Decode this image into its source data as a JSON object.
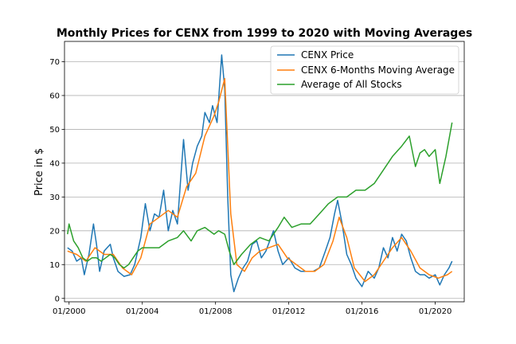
{
  "chart_data": {
    "type": "line",
    "title": "Monthly Prices for CENX from 1999 to 2020 with Moving Averages",
    "xlabel": "",
    "ylabel": "Price in $",
    "xlim": [
      "1999-10",
      "2021-08"
    ],
    "ylim": [
      -1,
      76
    ],
    "x_ticks": [
      "01/2000",
      "01/2004",
      "01/2008",
      "01/2012",
      "01/2016",
      "01/2020"
    ],
    "y_ticks": [
      0,
      10,
      20,
      30,
      40,
      50,
      60,
      70
    ],
    "grid": "horizontal",
    "legend_position": "top-right",
    "colors": {
      "price": "#1f77b4",
      "ma6": "#ff7f0e",
      "all": "#2ca02c"
    },
    "series": [
      {
        "name": "CENX Price",
        "points": [
          [
            "1999-12",
            15
          ],
          [
            "2000-03",
            14
          ],
          [
            "2000-06",
            11
          ],
          [
            "2000-09",
            12
          ],
          [
            "2000-11",
            7
          ],
          [
            "2001-02",
            13
          ],
          [
            "2001-05",
            22
          ],
          [
            "2001-07",
            16
          ],
          [
            "2001-09",
            8
          ],
          [
            "2001-12",
            14
          ],
          [
            "2002-04",
            16
          ],
          [
            "2002-06",
            12
          ],
          [
            "2002-09",
            8
          ],
          [
            "2003-01",
            6.5
          ],
          [
            "2003-05",
            7
          ],
          [
            "2003-08",
            10
          ],
          [
            "2003-12",
            18
          ],
          [
            "2004-03",
            28
          ],
          [
            "2004-06",
            20
          ],
          [
            "2004-09",
            25
          ],
          [
            "2004-12",
            24
          ],
          [
            "2005-03",
            32
          ],
          [
            "2005-06",
            20
          ],
          [
            "2005-09",
            26
          ],
          [
            "2005-12",
            22
          ],
          [
            "2006-04",
            47
          ],
          [
            "2006-07",
            32
          ],
          [
            "2006-10",
            40
          ],
          [
            "2007-01",
            45
          ],
          [
            "2007-04",
            48
          ],
          [
            "2007-06",
            55
          ],
          [
            "2007-09",
            52
          ],
          [
            "2007-11",
            57
          ],
          [
            "2008-02",
            52
          ],
          [
            "2008-05",
            72
          ],
          [
            "2008-07",
            62
          ],
          [
            "2008-09",
            30
          ],
          [
            "2008-11",
            7
          ],
          [
            "2009-01",
            2
          ],
          [
            "2009-04",
            6
          ],
          [
            "2009-07",
            9
          ],
          [
            "2009-10",
            11
          ],
          [
            "2010-01",
            16
          ],
          [
            "2010-04",
            17
          ],
          [
            "2010-07",
            12
          ],
          [
            "2010-10",
            14
          ],
          [
            "2011-03",
            20
          ],
          [
            "2011-06",
            14
          ],
          [
            "2011-09",
            10
          ],
          [
            "2012-01",
            12
          ],
          [
            "2012-05",
            9
          ],
          [
            "2012-09",
            8
          ],
          [
            "2013-01",
            8
          ],
          [
            "2013-05",
            8
          ],
          [
            "2013-09",
            9
          ],
          [
            "2014-01",
            14
          ],
          [
            "2014-04",
            18
          ],
          [
            "2014-07",
            25
          ],
          [
            "2014-09",
            29
          ],
          [
            "2014-12",
            22
          ],
          [
            "2015-03",
            13
          ],
          [
            "2015-06",
            10
          ],
          [
            "2015-09",
            6
          ],
          [
            "2016-01",
            3.5
          ],
          [
            "2016-05",
            8
          ],
          [
            "2016-09",
            6
          ],
          [
            "2016-12",
            9
          ],
          [
            "2017-03",
            15
          ],
          [
            "2017-06",
            12
          ],
          [
            "2017-09",
            18
          ],
          [
            "2017-12",
            14
          ],
          [
            "2018-03",
            19
          ],
          [
            "2018-06",
            17
          ],
          [
            "2018-09",
            12
          ],
          [
            "2018-12",
            8
          ],
          [
            "2019-03",
            7
          ],
          [
            "2019-06",
            7
          ],
          [
            "2019-09",
            6
          ],
          [
            "2020-01",
            7
          ],
          [
            "2020-04",
            4
          ],
          [
            "2020-07",
            7
          ],
          [
            "2020-10",
            9
          ],
          [
            "2020-12",
            11
          ]
        ]
      },
      {
        "name": "CENX 6-Months Moving Average",
        "points": [
          [
            "1999-12",
            14
          ],
          [
            "2000-06",
            13
          ],
          [
            "2000-12",
            11
          ],
          [
            "2001-06",
            15
          ],
          [
            "2001-12",
            13
          ],
          [
            "2002-06",
            13
          ],
          [
            "2002-12",
            9
          ],
          [
            "2003-06",
            7
          ],
          [
            "2003-12",
            12
          ],
          [
            "2004-06",
            22
          ],
          [
            "2004-12",
            24
          ],
          [
            "2005-06",
            26
          ],
          [
            "2005-12",
            24
          ],
          [
            "2006-06",
            33
          ],
          [
            "2006-12",
            37
          ],
          [
            "2007-06",
            48
          ],
          [
            "2007-12",
            54
          ],
          [
            "2008-03",
            58
          ],
          [
            "2008-07",
            65
          ],
          [
            "2008-09",
            45
          ],
          [
            "2008-11",
            25
          ],
          [
            "2009-03",
            10
          ],
          [
            "2009-08",
            8
          ],
          [
            "2010-01",
            12
          ],
          [
            "2010-06",
            14
          ],
          [
            "2010-12",
            15
          ],
          [
            "2011-06",
            16
          ],
          [
            "2011-12",
            12
          ],
          [
            "2012-06",
            10
          ],
          [
            "2012-12",
            8
          ],
          [
            "2013-06",
            8
          ],
          [
            "2013-12",
            10
          ],
          [
            "2014-06",
            17
          ],
          [
            "2014-10",
            24
          ],
          [
            "2015-03",
            18
          ],
          [
            "2015-08",
            9
          ],
          [
            "2016-03",
            5
          ],
          [
            "2016-09",
            7
          ],
          [
            "2017-03",
            11
          ],
          [
            "2017-09",
            15
          ],
          [
            "2018-03",
            18
          ],
          [
            "2018-09",
            14
          ],
          [
            "2019-03",
            9
          ],
          [
            "2019-09",
            7
          ],
          [
            "2020-03",
            6
          ],
          [
            "2020-09",
            7
          ],
          [
            "2020-12",
            8
          ]
        ]
      },
      {
        "name": "Average of All Stocks",
        "points": [
          [
            "1999-12",
            19
          ],
          [
            "2000-01",
            22
          ],
          [
            "2000-04",
            17
          ],
          [
            "2000-07",
            15
          ],
          [
            "2000-10",
            12
          ],
          [
            "2001-01",
            11
          ],
          [
            "2001-04",
            12
          ],
          [
            "2001-07",
            12
          ],
          [
            "2001-10",
            11
          ],
          [
            "2002-01",
            12
          ],
          [
            "2002-04",
            13
          ],
          [
            "2002-07",
            12
          ],
          [
            "2002-10",
            10
          ],
          [
            "2003-01",
            9
          ],
          [
            "2003-04",
            10
          ],
          [
            "2003-07",
            12
          ],
          [
            "2003-10",
            14
          ],
          [
            "2004-01",
            15
          ],
          [
            "2004-06",
            15
          ],
          [
            "2004-12",
            15
          ],
          [
            "2005-06",
            17
          ],
          [
            "2005-12",
            18
          ],
          [
            "2006-04",
            20
          ],
          [
            "2006-09",
            17
          ],
          [
            "2007-01",
            20
          ],
          [
            "2007-06",
            21
          ],
          [
            "2007-12",
            19
          ],
          [
            "2008-03",
            20
          ],
          [
            "2008-07",
            19
          ],
          [
            "2008-10",
            14
          ],
          [
            "2009-01",
            10
          ],
          [
            "2009-06",
            13
          ],
          [
            "2009-12",
            16
          ],
          [
            "2010-06",
            18
          ],
          [
            "2010-12",
            17
          ],
          [
            "2011-06",
            21
          ],
          [
            "2011-10",
            24
          ],
          [
            "2012-03",
            21
          ],
          [
            "2012-09",
            22
          ],
          [
            "2013-03",
            22
          ],
          [
            "2013-09",
            25
          ],
          [
            "2014-03",
            28
          ],
          [
            "2014-09",
            30
          ],
          [
            "2015-03",
            30
          ],
          [
            "2015-09",
            32
          ],
          [
            "2016-03",
            32
          ],
          [
            "2016-09",
            34
          ],
          [
            "2017-03",
            38
          ],
          [
            "2017-09",
            42
          ],
          [
            "2018-03",
            45
          ],
          [
            "2018-08",
            48
          ],
          [
            "2018-12",
            39
          ],
          [
            "2019-03",
            43
          ],
          [
            "2019-06",
            44
          ],
          [
            "2019-09",
            42
          ],
          [
            "2020-01",
            44
          ],
          [
            "2020-04",
            34
          ],
          [
            "2020-08",
            42
          ],
          [
            "2020-12",
            52
          ]
        ]
      }
    ]
  }
}
